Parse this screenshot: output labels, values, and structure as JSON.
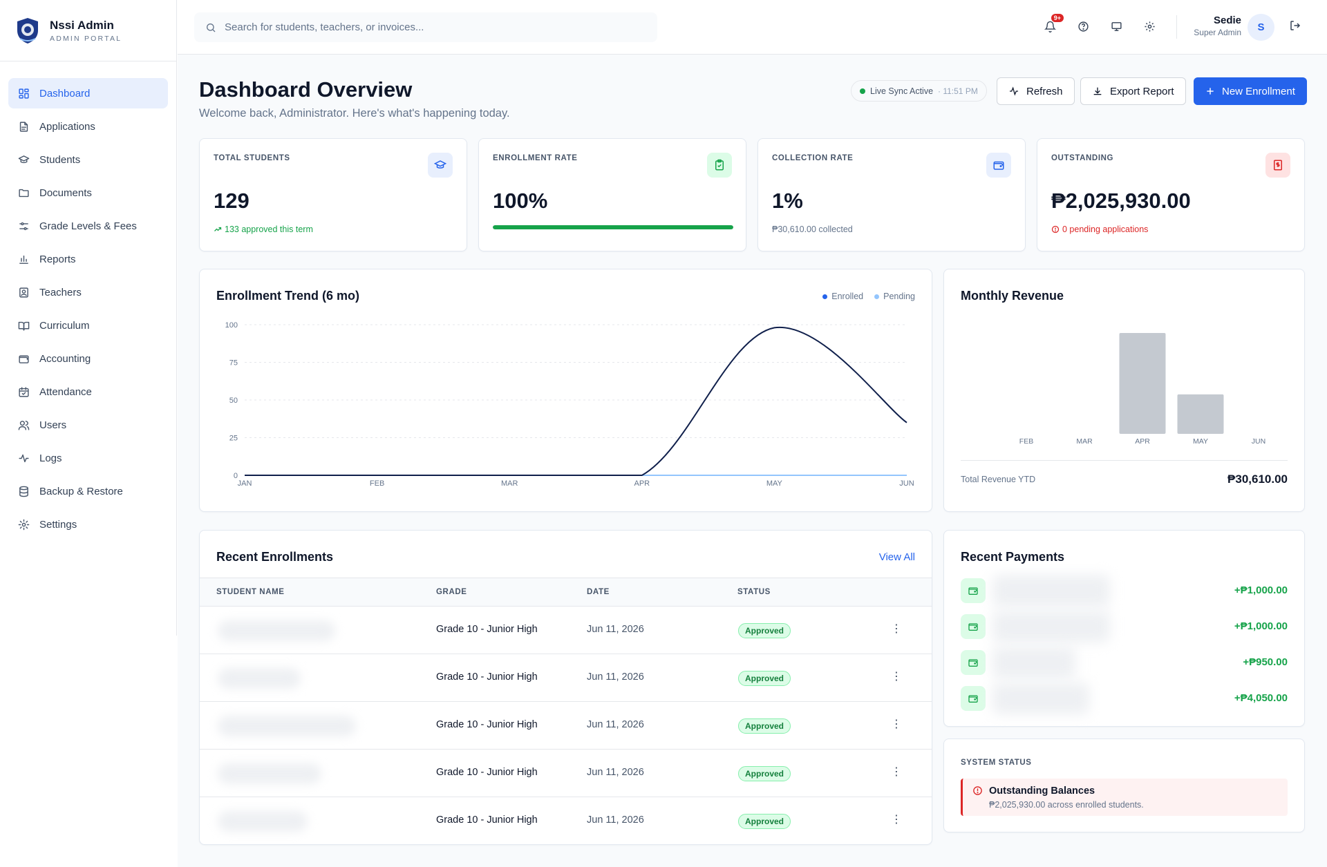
{
  "brand": {
    "title": "Nssi Admin",
    "subtitle": "ADMIN PORTAL"
  },
  "sidebar": {
    "items": [
      {
        "label": "Dashboard",
        "icon": "dashboard-grid-icon",
        "active": true
      },
      {
        "label": "Applications",
        "icon": "file-text-icon"
      },
      {
        "label": "Students",
        "icon": "graduation-cap-icon"
      },
      {
        "label": "Documents",
        "icon": "folder-icon"
      },
      {
        "label": "Grade Levels & Fees",
        "icon": "sliders-icon"
      },
      {
        "label": "Reports",
        "icon": "bar-chart-icon"
      },
      {
        "label": "Teachers",
        "icon": "contact-icon"
      },
      {
        "label": "Curriculum",
        "icon": "book-open-icon"
      },
      {
        "label": "Accounting",
        "icon": "wallet-icon"
      },
      {
        "label": "Attendance",
        "icon": "calendar-check-icon"
      },
      {
        "label": "Users",
        "icon": "users-icon"
      },
      {
        "label": "Logs",
        "icon": "activity-icon"
      },
      {
        "label": "Backup & Restore",
        "icon": "database-icon"
      },
      {
        "label": "Settings",
        "icon": "gear-icon"
      }
    ]
  },
  "topbar": {
    "search_placeholder": "Search for students, teachers, or invoices...",
    "notification_badge": "9+",
    "user": {
      "name": "Sedie",
      "role": "Super Admin",
      "initial": "S"
    }
  },
  "header": {
    "title": "Dashboard Overview",
    "subtitle": "Welcome back, Administrator. Here's what's happening today.",
    "sync_label": "Live Sync Active",
    "sync_time": "· 11:51 PM",
    "refresh_label": "Refresh",
    "export_label": "Export Report",
    "new_enrollment_label": "New Enrollment"
  },
  "stats": [
    {
      "label": "TOTAL STUDENTS",
      "value": "129",
      "foot": "133 approved this term",
      "foot_color": "#16a34a",
      "icon": "graduation-cap-icon",
      "icon_bg": "#e8effd"
    },
    {
      "label": "ENROLLMENT RATE",
      "value": "100%",
      "progress": 1.0,
      "icon": "clipboard-check-icon",
      "icon_bg": "#dcfce7"
    },
    {
      "label": "COLLECTION RATE",
      "value": "1%",
      "foot": "₱30,610.00 collected",
      "foot_color": "#64748b",
      "icon": "wallet-icon",
      "icon_bg": "#e8effd"
    },
    {
      "label": "OUTSTANDING",
      "value": "₱2,025,930.00",
      "foot": "0 pending applications",
      "foot_color": "#dc2626",
      "icon": "receipt-icon",
      "icon_bg": "#fee2e2"
    }
  ],
  "enrollment_chart": {
    "title": "Enrollment Trend (6 mo)",
    "legend": [
      {
        "name": "Enrolled",
        "color": "#2563eb"
      },
      {
        "name": "Pending",
        "color": "#93c5fd"
      }
    ]
  },
  "revenue_chart": {
    "title": "Monthly Revenue",
    "total_label": "Total Revenue YTD",
    "total_value": "₱30,610.00"
  },
  "chart_data": [
    {
      "type": "line",
      "title": "Enrollment Trend (6 mo)",
      "categories": [
        "JAN",
        "FEB",
        "MAR",
        "APR",
        "MAY",
        "JUN"
      ],
      "y_ticks": [
        0,
        25,
        50,
        75,
        100
      ],
      "ylim": [
        0,
        100
      ],
      "series": [
        {
          "name": "Enrolled",
          "values": [
            0,
            0,
            0,
            0,
            98,
            35
          ],
          "color": "#0f1f4b"
        },
        {
          "name": "Pending",
          "values": [
            0,
            0,
            0,
            0,
            0,
            0
          ],
          "color": "#93c5fd"
        }
      ],
      "legend": "top-right",
      "grid": true
    },
    {
      "type": "bar",
      "title": "Monthly Revenue",
      "categories": [
        "FEB",
        "MAR",
        "APR",
        "MAY",
        "JUN"
      ],
      "values": [
        0,
        0,
        22000,
        8610,
        0
      ],
      "color": "#c4c9d0",
      "grid": false
    }
  ],
  "recent_enrollments": {
    "title": "Recent Enrollments",
    "view_all": "View All",
    "columns": [
      "STUDENT NAME",
      "GRADE",
      "DATE",
      "STATUS"
    ],
    "rows": [
      {
        "grade": "Grade 10 - Junior High",
        "date": "Jun 11, 2026",
        "status": "Approved"
      },
      {
        "grade": "Grade 10 - Junior High",
        "date": "Jun 11, 2026",
        "status": "Approved"
      },
      {
        "grade": "Grade 10 - Junior High",
        "date": "Jun 11, 2026",
        "status": "Approved"
      },
      {
        "grade": "Grade 10 - Junior High",
        "date": "Jun 11, 2026",
        "status": "Approved"
      },
      {
        "grade": "Grade 10 - Junior High",
        "date": "Jun 11, 2026",
        "status": "Approved"
      }
    ]
  },
  "recent_payments": {
    "title": "Recent Payments",
    "items": [
      {
        "amount": "+₱1,000.00"
      },
      {
        "amount": "+₱1,000.00"
      },
      {
        "amount": "+₱950.00"
      },
      {
        "amount": "+₱4,050.00"
      }
    ]
  },
  "system_status": {
    "label": "SYSTEM STATUS",
    "alert_title": "Outstanding Balances",
    "alert_text": "₱2,025,930.00 across enrolled students."
  }
}
